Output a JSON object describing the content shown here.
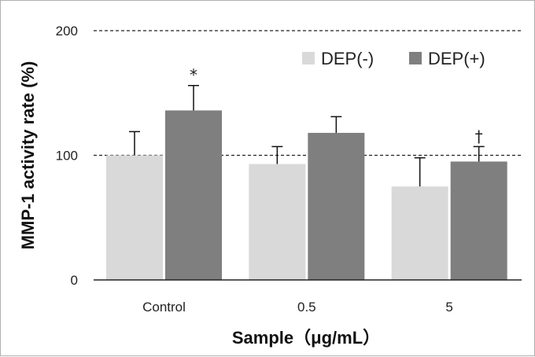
{
  "chart_data": {
    "type": "bar",
    "title": "",
    "xlabel": "Sample（μg/mL）",
    "ylabel": "MMP-1 activity rate (%)",
    "ylim": [
      0,
      200
    ],
    "yticks": [
      "0",
      "100",
      "200"
    ],
    "grid": "dashed lines at 100 and 200",
    "legend_position": "top-right",
    "categories": [
      "Control",
      "0.5",
      "5"
    ],
    "series": [
      {
        "name": "DEP(-)",
        "color": "#d9d9d9",
        "values": [
          100,
          93,
          75
        ],
        "errors": [
          19,
          14,
          23
        ],
        "annotations": [
          "",
          "",
          ""
        ]
      },
      {
        "name": "DEP(+)",
        "color": "#7f7f7f",
        "values": [
          136,
          118,
          95
        ],
        "errors": [
          20,
          13,
          12
        ],
        "annotations": [
          "*",
          "",
          "†"
        ]
      }
    ]
  }
}
